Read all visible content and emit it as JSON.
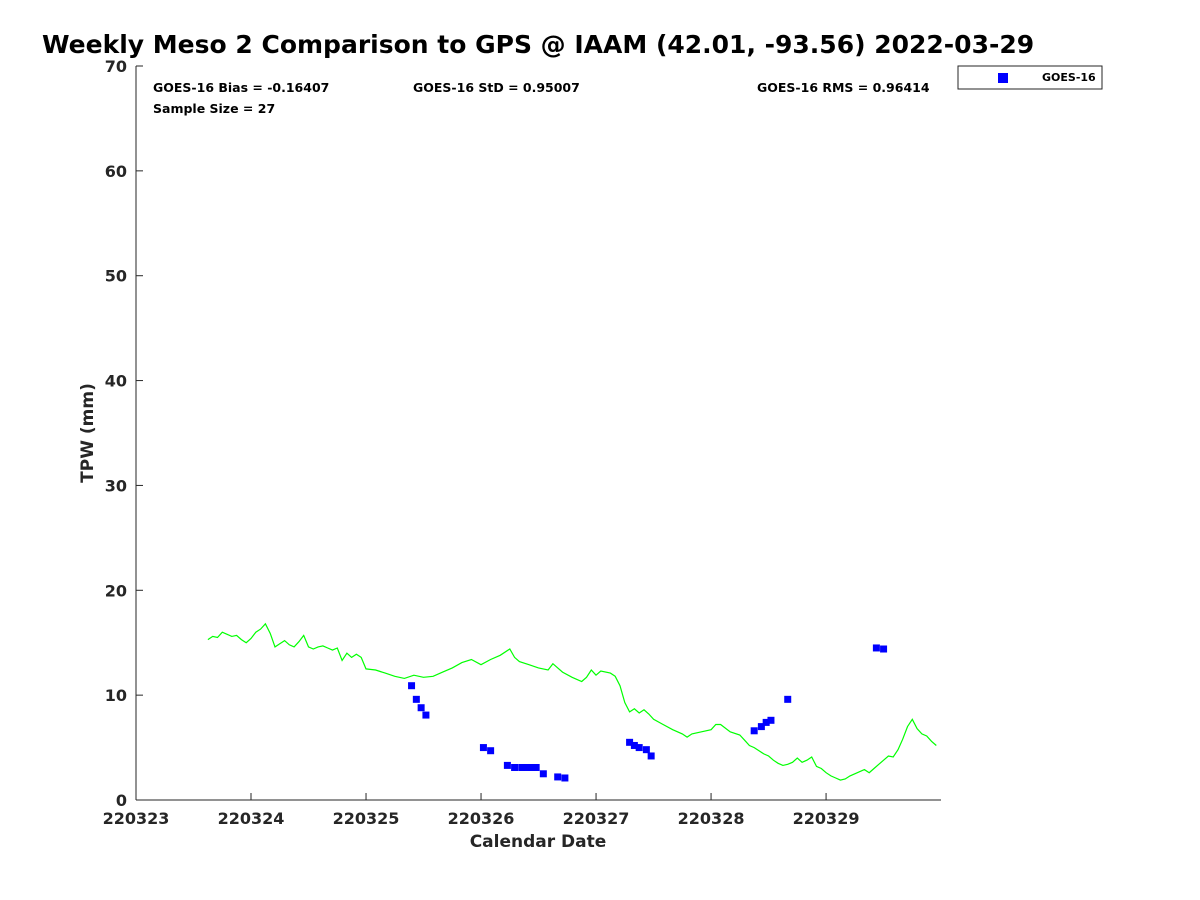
{
  "title": "Weekly Meso 2 Comparison to GPS @ IAAM (42.01, -93.56) 2022-03-29",
  "stats": {
    "bias": "GOES-16 Bias = -0.16407",
    "std": "GOES-16 StD = 0.95007",
    "rms": "GOES-16 RMS = 0.96414",
    "sample": "Sample Size = 27"
  },
  "legend": {
    "label": "GOES-16"
  },
  "colors": {
    "gps_line": "#00ff00",
    "goes_marker": "#0000ff",
    "axis": "#262626"
  },
  "chart_data": {
    "type": "scatter",
    "title": "Weekly Meso 2 Comparison to GPS @ IAAM (42.01, -93.56) 2022-03-29",
    "xlabel": "Calendar Date",
    "ylabel": "TPW (mm)",
    "xlim": [
      "2022-03-23T00:00",
      "2022-03-29T23:59"
    ],
    "ylim": [
      0,
      70
    ],
    "x_ticks": [
      "2022-03-23",
      "2022-03-24",
      "2022-03-25",
      "2022-03-26",
      "2022-03-27",
      "2022-03-28",
      "2022-03-29"
    ],
    "x_tick_labels": [
      "220323",
      "220324",
      "220325",
      "220326",
      "220327",
      "220328",
      "220329"
    ],
    "y_ticks": [
      0,
      10,
      20,
      30,
      40,
      50,
      60,
      70
    ],
    "grid": false,
    "legend_position": "outside top-right",
    "series": [
      {
        "style": "line",
        "color": "#00ff00",
        "points": [
          [
            "2022-03-23T15:00",
            15.3
          ],
          [
            "2022-03-23T16:00",
            15.6
          ],
          [
            "2022-03-23T17:00",
            15.5
          ],
          [
            "2022-03-23T18:00",
            16.0
          ],
          [
            "2022-03-23T19:00",
            15.8
          ],
          [
            "2022-03-23T20:00",
            15.6
          ],
          [
            "2022-03-23T21:00",
            15.7
          ],
          [
            "2022-03-23T22:00",
            15.3
          ],
          [
            "2022-03-23T23:00",
            15.0
          ],
          [
            "2022-03-24T00:00",
            15.4
          ],
          [
            "2022-03-24T01:00",
            16.0
          ],
          [
            "2022-03-24T02:00",
            16.3
          ],
          [
            "2022-03-24T03:00",
            16.8
          ],
          [
            "2022-03-24T04:00",
            15.9
          ],
          [
            "2022-03-24T05:00",
            14.6
          ],
          [
            "2022-03-24T06:00",
            14.9
          ],
          [
            "2022-03-24T07:00",
            15.2
          ],
          [
            "2022-03-24T08:00",
            14.8
          ],
          [
            "2022-03-24T09:00",
            14.6
          ],
          [
            "2022-03-24T10:00",
            15.1
          ],
          [
            "2022-03-24T11:00",
            15.7
          ],
          [
            "2022-03-24T12:00",
            14.6
          ],
          [
            "2022-03-24T13:00",
            14.4
          ],
          [
            "2022-03-24T14:00",
            14.6
          ],
          [
            "2022-03-24T15:00",
            14.7
          ],
          [
            "2022-03-24T16:00",
            14.5
          ],
          [
            "2022-03-24T17:00",
            14.3
          ],
          [
            "2022-03-24T18:00",
            14.5
          ],
          [
            "2022-03-24T19:00",
            13.3
          ],
          [
            "2022-03-24T20:00",
            14.0
          ],
          [
            "2022-03-24T21:00",
            13.6
          ],
          [
            "2022-03-24T22:00",
            13.9
          ],
          [
            "2022-03-24T23:00",
            13.6
          ],
          [
            "2022-03-25T00:00",
            12.5
          ],
          [
            "2022-03-25T02:00",
            12.4
          ],
          [
            "2022-03-25T04:00",
            12.1
          ],
          [
            "2022-03-25T06:00",
            11.8
          ],
          [
            "2022-03-25T08:00",
            11.6
          ],
          [
            "2022-03-25T10:00",
            11.9
          ],
          [
            "2022-03-25T12:00",
            11.7
          ],
          [
            "2022-03-25T14:00",
            11.8
          ],
          [
            "2022-03-25T16:00",
            12.2
          ],
          [
            "2022-03-25T18:00",
            12.6
          ],
          [
            "2022-03-25T20:00",
            13.1
          ],
          [
            "2022-03-25T22:00",
            13.4
          ],
          [
            "2022-03-26T00:00",
            12.9
          ],
          [
            "2022-03-26T02:00",
            13.4
          ],
          [
            "2022-03-26T04:00",
            13.8
          ],
          [
            "2022-03-26T06:00",
            14.4
          ],
          [
            "2022-03-26T07:00",
            13.6
          ],
          [
            "2022-03-26T08:00",
            13.2
          ],
          [
            "2022-03-26T10:00",
            12.9
          ],
          [
            "2022-03-26T12:00",
            12.6
          ],
          [
            "2022-03-26T14:00",
            12.4
          ],
          [
            "2022-03-26T15:00",
            13.0
          ],
          [
            "2022-03-26T17:00",
            12.2
          ],
          [
            "2022-03-26T19:00",
            11.7
          ],
          [
            "2022-03-26T21:00",
            11.3
          ],
          [
            "2022-03-26T22:00",
            11.7
          ],
          [
            "2022-03-26T23:00",
            12.4
          ],
          [
            "2022-03-27T00:00",
            11.9
          ],
          [
            "2022-03-27T01:00",
            12.3
          ],
          [
            "2022-03-27T03:00",
            12.1
          ],
          [
            "2022-03-27T04:00",
            11.8
          ],
          [
            "2022-03-27T05:00",
            10.9
          ],
          [
            "2022-03-27T06:00",
            9.3
          ],
          [
            "2022-03-27T07:00",
            8.4
          ],
          [
            "2022-03-27T08:00",
            8.7
          ],
          [
            "2022-03-27T09:00",
            8.3
          ],
          [
            "2022-03-27T10:00",
            8.6
          ],
          [
            "2022-03-27T11:00",
            8.2
          ],
          [
            "2022-03-27T12:00",
            7.7
          ],
          [
            "2022-03-27T14:00",
            7.2
          ],
          [
            "2022-03-27T16:00",
            6.7
          ],
          [
            "2022-03-27T18:00",
            6.3
          ],
          [
            "2022-03-27T19:00",
            6.0
          ],
          [
            "2022-03-27T20:00",
            6.3
          ],
          [
            "2022-03-27T22:00",
            6.5
          ],
          [
            "2022-03-28T00:00",
            6.7
          ],
          [
            "2022-03-28T01:00",
            7.2
          ],
          [
            "2022-03-28T02:00",
            7.2
          ],
          [
            "2022-03-28T04:00",
            6.5
          ],
          [
            "2022-03-28T06:00",
            6.2
          ],
          [
            "2022-03-28T07:00",
            5.7
          ],
          [
            "2022-03-28T08:00",
            5.2
          ],
          [
            "2022-03-28T09:00",
            5.0
          ],
          [
            "2022-03-28T10:00",
            4.7
          ],
          [
            "2022-03-28T11:00",
            4.4
          ],
          [
            "2022-03-28T12:00",
            4.2
          ],
          [
            "2022-03-28T13:00",
            3.8
          ],
          [
            "2022-03-28T14:00",
            3.5
          ],
          [
            "2022-03-28T15:00",
            3.3
          ],
          [
            "2022-03-28T16:00",
            3.4
          ],
          [
            "2022-03-28T17:00",
            3.6
          ],
          [
            "2022-03-28T18:00",
            4.0
          ],
          [
            "2022-03-28T19:00",
            3.6
          ],
          [
            "2022-03-28T20:00",
            3.8
          ],
          [
            "2022-03-28T21:00",
            4.1
          ],
          [
            "2022-03-28T22:00",
            3.2
          ],
          [
            "2022-03-28T23:00",
            3.0
          ],
          [
            "2022-03-29T00:00",
            2.6
          ],
          [
            "2022-03-29T01:00",
            2.3
          ],
          [
            "2022-03-29T02:00",
            2.1
          ],
          [
            "2022-03-29T03:00",
            1.9
          ],
          [
            "2022-03-29T04:00",
            2.0
          ],
          [
            "2022-03-29T05:00",
            2.3
          ],
          [
            "2022-03-29T06:00",
            2.5
          ],
          [
            "2022-03-29T07:00",
            2.7
          ],
          [
            "2022-03-29T08:00",
            2.9
          ],
          [
            "2022-03-29T09:00",
            2.6
          ],
          [
            "2022-03-29T10:00",
            3.0
          ],
          [
            "2022-03-29T11:00",
            3.4
          ],
          [
            "2022-03-29T12:00",
            3.8
          ],
          [
            "2022-03-29T13:00",
            4.2
          ],
          [
            "2022-03-29T14:00",
            4.1
          ],
          [
            "2022-03-29T15:00",
            4.8
          ],
          [
            "2022-03-29T16:00",
            5.8
          ],
          [
            "2022-03-29T17:00",
            7.0
          ],
          [
            "2022-03-29T18:00",
            7.7
          ],
          [
            "2022-03-29T19:00",
            6.8
          ],
          [
            "2022-03-29T20:00",
            6.3
          ],
          [
            "2022-03-29T21:00",
            6.1
          ],
          [
            "2022-03-29T22:00",
            5.6
          ],
          [
            "2022-03-29T23:00",
            5.2
          ]
        ]
      },
      {
        "style": "markers",
        "marker": "square",
        "color": "#0000ff",
        "points": [
          [
            "2022-03-25T09:30",
            10.9
          ],
          [
            "2022-03-25T10:30",
            9.6
          ],
          [
            "2022-03-25T11:30",
            8.8
          ],
          [
            "2022-03-25T12:30",
            8.1
          ],
          [
            "2022-03-26T00:30",
            5.0
          ],
          [
            "2022-03-26T02:00",
            4.7
          ],
          [
            "2022-03-26T05:30",
            3.3
          ],
          [
            "2022-03-26T07:00",
            3.1
          ],
          [
            "2022-03-26T08:30",
            3.1
          ],
          [
            "2022-03-26T09:30",
            3.1
          ],
          [
            "2022-03-26T10:30",
            3.1
          ],
          [
            "2022-03-26T11:30",
            3.1
          ],
          [
            "2022-03-26T13:00",
            2.5
          ],
          [
            "2022-03-26T16:00",
            2.2
          ],
          [
            "2022-03-26T17:30",
            2.1
          ],
          [
            "2022-03-27T07:00",
            5.5
          ],
          [
            "2022-03-27T08:00",
            5.2
          ],
          [
            "2022-03-27T09:00",
            5.0
          ],
          [
            "2022-03-27T10:30",
            4.8
          ],
          [
            "2022-03-27T11:30",
            4.2
          ],
          [
            "2022-03-28T09:00",
            6.6
          ],
          [
            "2022-03-28T10:30",
            7.0
          ],
          [
            "2022-03-28T11:30",
            7.4
          ],
          [
            "2022-03-28T12:30",
            7.6
          ],
          [
            "2022-03-28T16:00",
            9.6
          ],
          [
            "2022-03-29T10:30",
            14.5
          ],
          [
            "2022-03-29T12:00",
            14.4
          ]
        ]
      }
    ]
  }
}
